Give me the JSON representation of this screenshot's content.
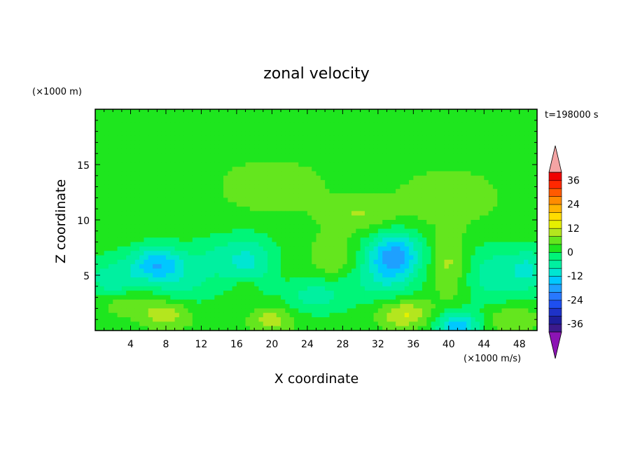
{
  "chart_data": {
    "type": "heatmap",
    "title": "zonal velocity",
    "xlabel": "X coordinate",
    "ylabel": "Z coordinate",
    "x_unit": "(×1000 m/s)",
    "y_unit": "(×1000 m)",
    "time_label": "t=198000 s",
    "xlim": [
      0,
      50
    ],
    "ylim": [
      0,
      20
    ],
    "x_ticks": [
      4,
      8,
      12,
      16,
      20,
      24,
      28,
      32,
      36,
      40,
      44,
      48
    ],
    "y_ticks": [
      5,
      10,
      15
    ],
    "colorbar": {
      "levels": [
        -40,
        -36,
        -32,
        -28,
        -24,
        -20,
        -16,
        -12,
        -8,
        -4,
        0,
        4,
        8,
        12,
        16,
        20,
        24,
        28,
        32,
        36,
        40
      ],
      "labeled_levels": [
        36,
        24,
        12,
        0,
        -12,
        -24,
        -36
      ],
      "colors": [
        "#3c1a8c",
        "#1e1e9c",
        "#1e32c8",
        "#1e4ff0",
        "#2878ff",
        "#1ea0ff",
        "#00c8ff",
        "#00e6d2",
        "#00f0a0",
        "#00f578",
        "#1ee61e",
        "#64e61e",
        "#b4e61e",
        "#e6f000",
        "#ffdc00",
        "#ffb400",
        "#ff8c00",
        "#ff5a00",
        "#ff2800",
        "#f00000"
      ],
      "under_color": "#8c14b4",
      "over_color": "#f4a4a4"
    },
    "background_value": 2,
    "features": [
      {
        "x": 2,
        "z": 4.5,
        "value": -9,
        "sx": 3,
        "sz": 2
      },
      {
        "x": 7,
        "z": 6,
        "value": -17,
        "sx": 3,
        "sz": 1.6
      },
      {
        "x": 10,
        "z": 4,
        "value": -6,
        "sx": 3.5,
        "sz": 2
      },
      {
        "x": 15,
        "z": 6.5,
        "value": -8,
        "sx": 4,
        "sz": 2
      },
      {
        "x": 18,
        "z": 6,
        "value": -6,
        "sx": 2.5,
        "sz": 2.5
      },
      {
        "x": 24,
        "z": 3,
        "value": -6,
        "sx": 3,
        "sz": 1.5
      },
      {
        "x": 27,
        "z": 4,
        "value": -7,
        "sx": 3,
        "sz": 2
      },
      {
        "x": 34,
        "z": 7,
        "value": -16,
        "sx": 3,
        "sz": 2
      },
      {
        "x": 33,
        "z": 5,
        "value": -9,
        "sx": 3.5,
        "sz": 2.5
      },
      {
        "x": 41,
        "z": 0.5,
        "value": -17,
        "sx": 2.5,
        "sz": 1.2
      },
      {
        "x": 45,
        "z": 5,
        "value": -9,
        "sx": 3,
        "sz": 2.5
      },
      {
        "x": 49,
        "z": 5.5,
        "value": -10,
        "sx": 2,
        "sz": 2
      },
      {
        "x": 8,
        "z": 1.5,
        "value": 9,
        "sx": 3,
        "sz": 1.3
      },
      {
        "x": 3,
        "z": 2.5,
        "value": 6,
        "sx": 3,
        "sz": 1.2
      },
      {
        "x": 20,
        "z": 1,
        "value": 8,
        "sx": 2.5,
        "sz": 1.2
      },
      {
        "x": 27,
        "z": 6,
        "value": 8,
        "sx": 2.5,
        "sz": 2.5
      },
      {
        "x": 35,
        "z": 1.5,
        "value": 11,
        "sx": 3,
        "sz": 1.3
      },
      {
        "x": 40,
        "z": 6,
        "value": 7,
        "sx": 2,
        "sz": 3
      },
      {
        "x": 47,
        "z": 1,
        "value": 6,
        "sx": 3,
        "sz": 1.2
      },
      {
        "x": 17,
        "z": 4,
        "value": 5,
        "sx": 1.2,
        "sz": 1
      },
      {
        "x": 30,
        "z": 10.5,
        "value": 6,
        "sx": 4,
        "sz": 1.5
      },
      {
        "x": 20,
        "z": 13,
        "value": 5,
        "sx": 6,
        "sz": 2.5
      },
      {
        "x": 40,
        "z": 12,
        "value": 5,
        "sx": 6,
        "sz": 2.5
      }
    ]
  }
}
